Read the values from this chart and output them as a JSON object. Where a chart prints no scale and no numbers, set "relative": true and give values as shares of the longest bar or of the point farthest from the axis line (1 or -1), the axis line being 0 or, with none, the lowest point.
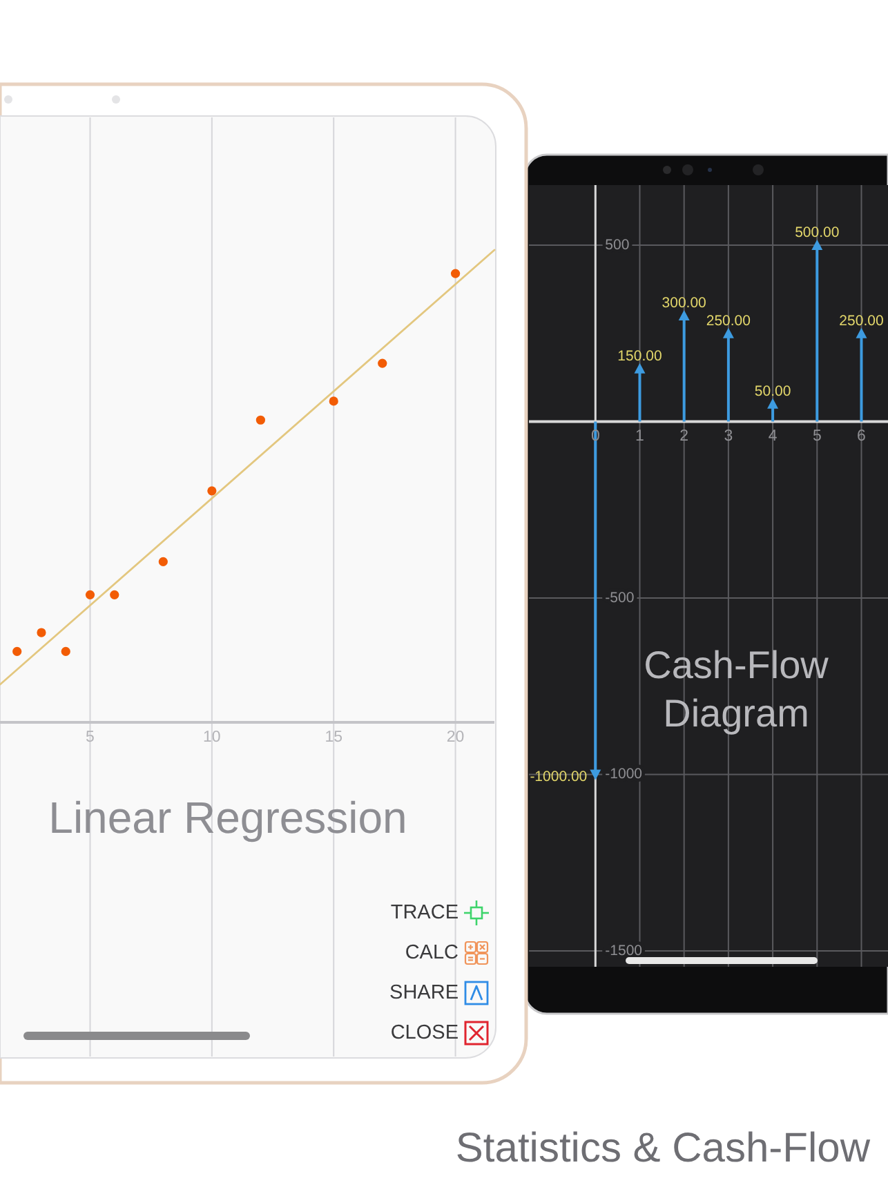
{
  "chart_data": [
    {
      "type": "scatter",
      "title": "Linear Regression",
      "relative": true,
      "x": [
        2,
        3,
        4,
        5,
        6,
        8,
        10,
        12,
        15,
        17,
        20
      ],
      "xlim": [
        1.3,
        21.6
      ],
      "xticks": [
        5,
        10,
        15,
        20
      ],
      "grid": "x",
      "series": [
        {
          "color": "#f25c05",
          "marker": "circle",
          "values": [
            0.15,
            0.19,
            0.15,
            0.27,
            0.27,
            0.34,
            0.49,
            0.64,
            0.68,
            0.76,
            0.95
          ]
        },
        {
          "type": "line",
          "marker": "none",
          "color": "#e3c77f",
          "x": [
            1.3,
            21.6
          ],
          "values": [
            0.08,
            1
          ]
        }
      ],
      "annotations": [
        "TRACE",
        "CALC",
        "SHARE",
        "CLOSE"
      ]
    },
    {
      "type": "lollipop",
      "title": "Cash-Flow Diagram",
      "x": [
        0,
        1,
        2,
        3,
        4,
        5,
        6
      ],
      "values": [
        -1000,
        150,
        300,
        250,
        50,
        500,
        250
      ],
      "color": "#3d9be0",
      "xlim": [
        -1.5,
        6.6
      ],
      "xticks": [
        0,
        1,
        2,
        3,
        4,
        5,
        6
      ],
      "ylim": [
        -1545,
        670
      ],
      "yticks": [
        -1500,
        -1000,
        -500,
        500
      ],
      "grid": true,
      "marker": "triangle",
      "value_labels": [
        "-1000.00",
        "150.00",
        "300.00",
        "250.00",
        "50.00",
        "500.00",
        "250.00"
      ],
      "annotations": [
        "Statistics & Cash-Flow"
      ]
    }
  ]
}
